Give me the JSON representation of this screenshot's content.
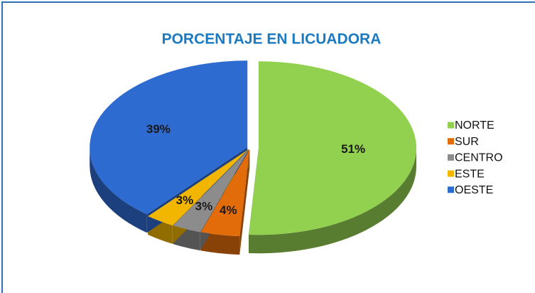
{
  "chart_data": {
    "type": "pie",
    "title": "PORCENTAJE EN LICUADORA",
    "categories": [
      "NORTE",
      "SUR",
      "CENTRO",
      "ESTE",
      "OESTE"
    ],
    "values": [
      51,
      4,
      3,
      3,
      39
    ],
    "value_labels": [
      "51%",
      "4%",
      "3%",
      "3%",
      "39%"
    ],
    "colors": [
      "#92d050",
      "#e36c0a",
      "#8c8c8c",
      "#f2b600",
      "#2e6bd1"
    ],
    "legend": "right"
  }
}
